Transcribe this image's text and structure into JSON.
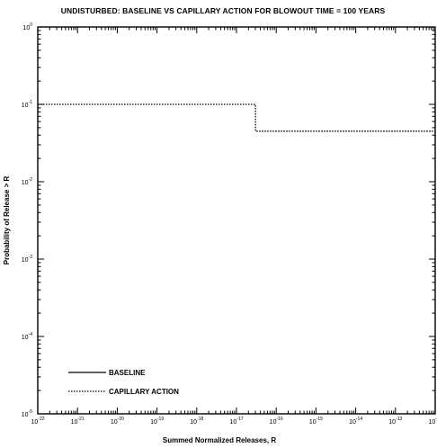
{
  "chart_data": {
    "type": "line",
    "title": "UNDISTURBED: BASELINE VS CAPILLARY ACTION FOR BLOWOUT TIME = 100 YEARS",
    "xlabel": "Summed Normalized Releases, R",
    "ylabel": "Probability of Release > R",
    "x_scale": "log",
    "y_scale": "log",
    "xlim": [
      1e-22,
      1e-12
    ],
    "ylim": [
      1e-05,
      1
    ],
    "x_tick_labels": [
      {
        "base": "10",
        "exp": "-22"
      },
      {
        "base": "10",
        "exp": "-21"
      },
      {
        "base": "10",
        "exp": "-20"
      },
      {
        "base": "10",
        "exp": "-19"
      },
      {
        "base": "10",
        "exp": "-18"
      },
      {
        "base": "10",
        "exp": "-17"
      },
      {
        "base": "10",
        "exp": "-16"
      },
      {
        "base": "10",
        "exp": "-15"
      },
      {
        "base": "10",
        "exp": "-14"
      },
      {
        "base": "10",
        "exp": "-13"
      },
      {
        "base": "10",
        "exp": "-12"
      }
    ],
    "y_tick_labels": [
      {
        "base": "10",
        "exp": "0"
      },
      {
        "base": "10",
        "exp": "-1"
      },
      {
        "base": "10",
        "exp": "-2"
      },
      {
        "base": "10",
        "exp": "-3"
      },
      {
        "base": "10",
        "exp": "-4"
      },
      {
        "base": "10",
        "exp": "-5"
      }
    ],
    "grid": false,
    "legend_position": "bottom-left",
    "series": [
      {
        "name": "BASELINE",
        "style": "solid",
        "x": [],
        "y": []
      },
      {
        "name": "CAPILLARY ACTION",
        "style": "dotted",
        "x": [
          1e-22,
          3e-17,
          3e-17,
          1e-12
        ],
        "y": [
          0.1,
          0.1,
          0.045,
          0.045
        ]
      }
    ]
  }
}
